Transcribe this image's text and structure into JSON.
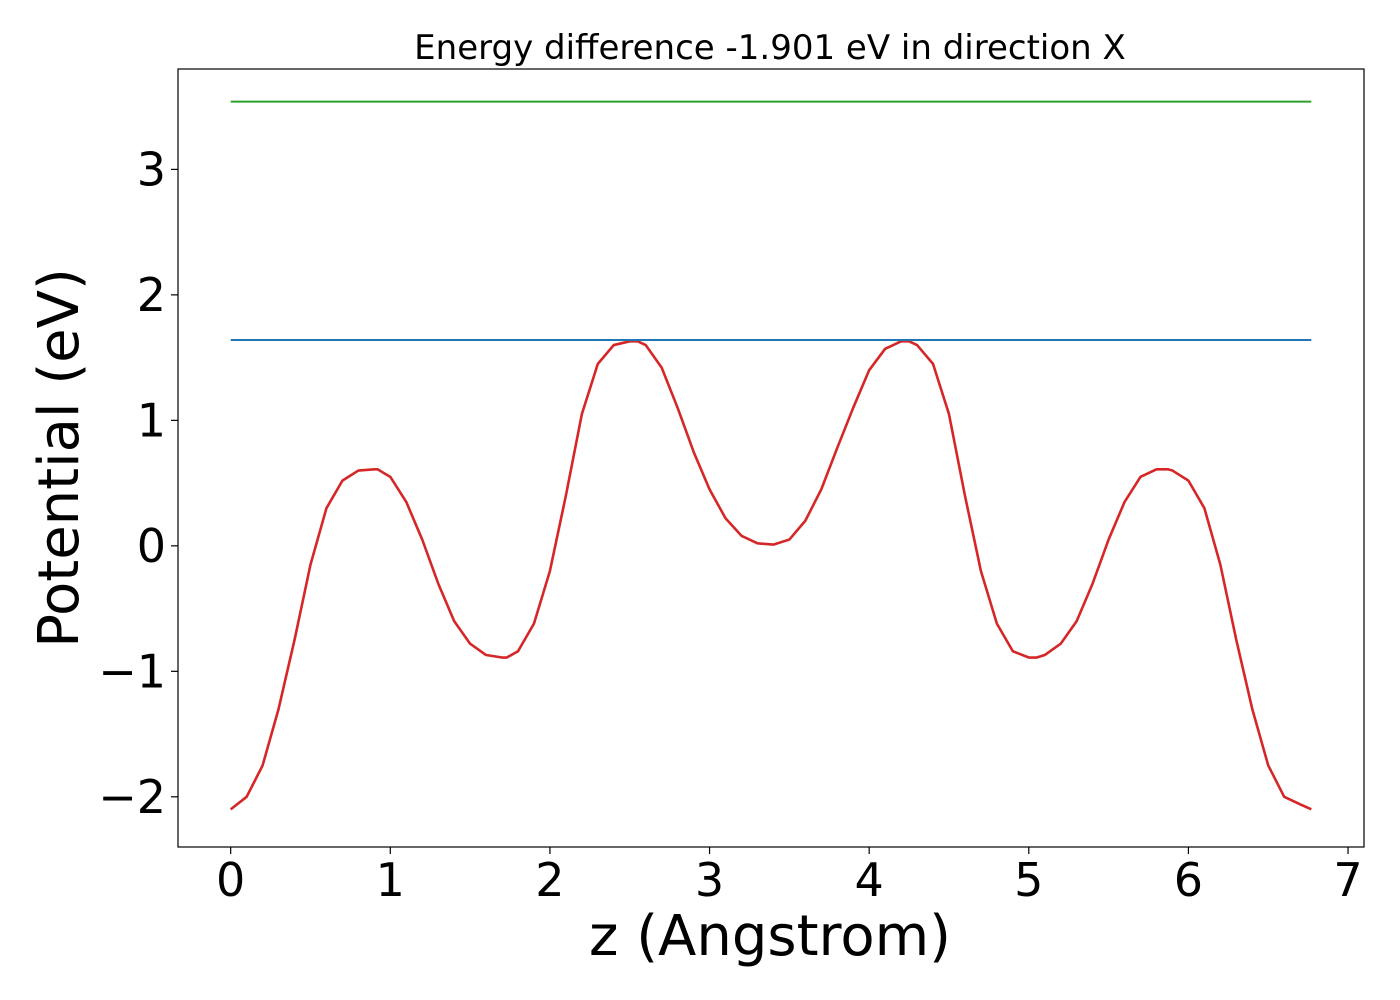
{
  "chart_data": {
    "type": "line",
    "title": "Energy difference -1.901 eV in direction X",
    "xlabel": "z (Angstrom)",
    "ylabel": "Potential (eV)",
    "xlim": [
      -0.33,
      7.1
    ],
    "ylim": [
      -2.4,
      3.8
    ],
    "xticks": [
      0,
      1,
      2,
      3,
      4,
      5,
      6,
      7
    ],
    "xtick_labels": [
      "0",
      "1",
      "2",
      "3",
      "4",
      "5",
      "6",
      "7"
    ],
    "yticks": [
      -2,
      -1,
      0,
      1,
      2,
      3
    ],
    "ytick_labels": [
      "−2",
      "−1",
      "0",
      "1",
      "2",
      "3"
    ],
    "grid": false,
    "series": [
      {
        "color": "#d62728",
        "x": [
          0,
          0.1,
          0.2,
          0.3,
          0.4,
          0.5,
          0.6,
          0.7,
          0.8,
          0.9,
          0.92,
          1.0,
          1.1,
          1.2,
          1.3,
          1.4,
          1.5,
          1.6,
          1.7,
          1.73,
          1.8,
          1.9,
          2.0,
          2.1,
          2.2,
          2.3,
          2.4,
          2.5,
          2.55,
          2.6,
          2.7,
          2.8,
          2.9,
          3.0,
          3.1,
          3.2,
          3.3,
          3.4,
          3.5,
          3.6,
          3.7,
          3.8,
          3.9,
          4.0,
          4.1,
          4.2,
          4.25,
          4.3,
          4.4,
          4.5,
          4.6,
          4.7,
          4.8,
          4.9,
          5.0,
          5.05,
          5.1,
          5.2,
          5.3,
          5.4,
          5.5,
          5.6,
          5.7,
          5.8,
          5.87,
          5.9,
          6.0,
          6.1,
          6.2,
          6.3,
          6.4,
          6.5,
          6.6,
          6.7,
          6.77
        ],
        "y": [
          -2.1,
          -2.0,
          -1.75,
          -1.3,
          -0.75,
          -0.15,
          0.3,
          0.52,
          0.6,
          0.61,
          0.61,
          0.55,
          0.35,
          0.05,
          -0.3,
          -0.6,
          -0.78,
          -0.87,
          -0.89,
          -0.89,
          -0.84,
          -0.62,
          -0.2,
          0.4,
          1.05,
          1.45,
          1.6,
          1.63,
          1.63,
          1.6,
          1.42,
          1.1,
          0.75,
          0.45,
          0.22,
          0.08,
          0.02,
          0.01,
          0.05,
          0.2,
          0.45,
          0.78,
          1.1,
          1.4,
          1.57,
          1.63,
          1.63,
          1.6,
          1.45,
          1.05,
          0.4,
          -0.2,
          -0.62,
          -0.84,
          -0.89,
          -0.89,
          -0.87,
          -0.78,
          -0.6,
          -0.3,
          0.05,
          0.35,
          0.55,
          0.61,
          0.61,
          0.6,
          0.52,
          0.3,
          -0.15,
          -0.75,
          -1.3,
          -1.75,
          -2.0,
          -2.06,
          -2.1
        ]
      },
      {
        "color": "#1f77b4",
        "x": [
          0,
          6.77
        ],
        "y": [
          1.64,
          1.64
        ]
      },
      {
        "color": "#2ca02c",
        "x": [
          0,
          6.77
        ],
        "y": [
          3.54,
          3.54
        ]
      }
    ]
  }
}
